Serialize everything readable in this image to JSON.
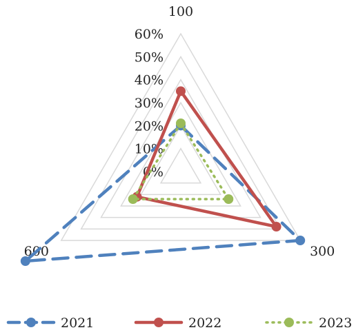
{
  "chart_data": {
    "type": "radar",
    "categories": [
      "100",
      "300",
      "600"
    ],
    "r_ticks": [
      "0%",
      "10%",
      "20%",
      "30%",
      "40%",
      "50%",
      "60%"
    ],
    "rlim": [
      0,
      0.6
    ],
    "grid": true,
    "legend": "bottom",
    "series": [
      {
        "name": "2021",
        "values": [
          0.2,
          0.6,
          0.78
        ],
        "color": "#4F81BD",
        "style": "dashed"
      },
      {
        "name": "2022",
        "values": [
          0.35,
          0.48,
          0.22
        ],
        "color": "#C0504D",
        "style": "solid"
      },
      {
        "name": "2023",
        "values": [
          0.21,
          0.24,
          0.24
        ],
        "color": "#9BBB59",
        "style": "dotted"
      }
    ]
  }
}
